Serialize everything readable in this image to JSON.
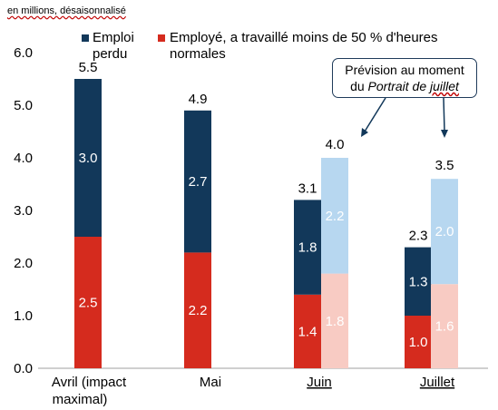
{
  "chart_data": {
    "type": "bar",
    "unit_label": "en millions, désaisonnalisé",
    "categories": [
      "Avril (impact maximal)",
      "Mai",
      "Juin",
      "Juillet"
    ],
    "ylim": [
      0,
      6
    ],
    "yticks": [
      "0.0",
      "1.0",
      "2.0",
      "3.0",
      "4.0",
      "5.0",
      "6.0"
    ],
    "legend": [
      {
        "name": "Emploi perdu",
        "color": "#12385a"
      },
      {
        "name": "Employé, a travaillé moins de 50 % d'heures normales",
        "color": "#d52b1e"
      }
    ],
    "series": [
      {
        "name": "Emploi perdu",
        "values": [
          3.0,
          2.7,
          1.8,
          1.3
        ],
        "labels": [
          "3.0",
          "2.7",
          "1.8",
          "1.3"
        ]
      },
      {
        "name": "Employé, a travaillé moins de 50 % d'heures normales",
        "values": [
          2.5,
          2.2,
          1.4,
          1.0
        ],
        "labels": [
          "2.5",
          "2.2",
          "1.4",
          "1.0"
        ]
      }
    ],
    "totals": [
      "5.5",
      "4.9",
      "3.1",
      "2.3"
    ],
    "forecast": {
      "categories": [
        "Juin",
        "Juillet"
      ],
      "lost": [
        2.2,
        2.0
      ],
      "lost_labels": [
        "2.2",
        "2.0"
      ],
      "reduced": [
        1.8,
        1.6
      ],
      "reduced_labels": [
        "1.8",
        "1.6"
      ],
      "totals": [
        "4.0",
        "3.5"
      ],
      "lost_color": "#b7d7f0",
      "reduced_color": "#f8cbc3"
    },
    "callout": {
      "line1": "Prévision au moment",
      "line2_prefix": "du ",
      "line2_italic_a": "Portrait de ",
      "line2_italic_b": "juillet"
    }
  }
}
